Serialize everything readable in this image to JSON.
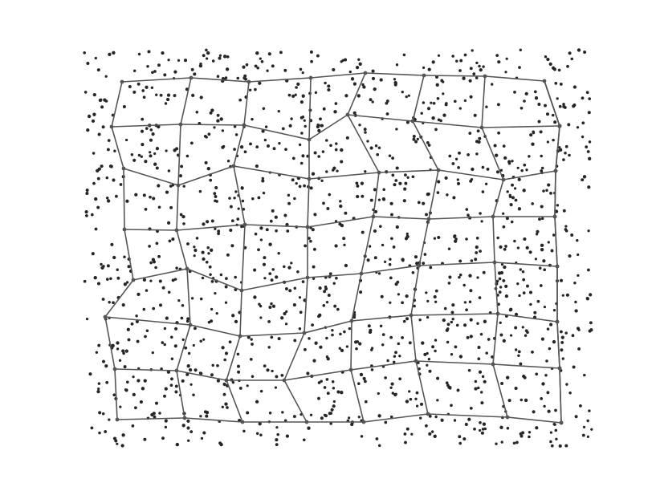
{
  "colors": {
    "background": "#ffffff",
    "points": "#262626",
    "mesh_lines": "#555555"
  },
  "mesh": {
    "rows": 8,
    "cols": 8
  },
  "scatter": {
    "count": 1400,
    "seed": 7
  }
}
